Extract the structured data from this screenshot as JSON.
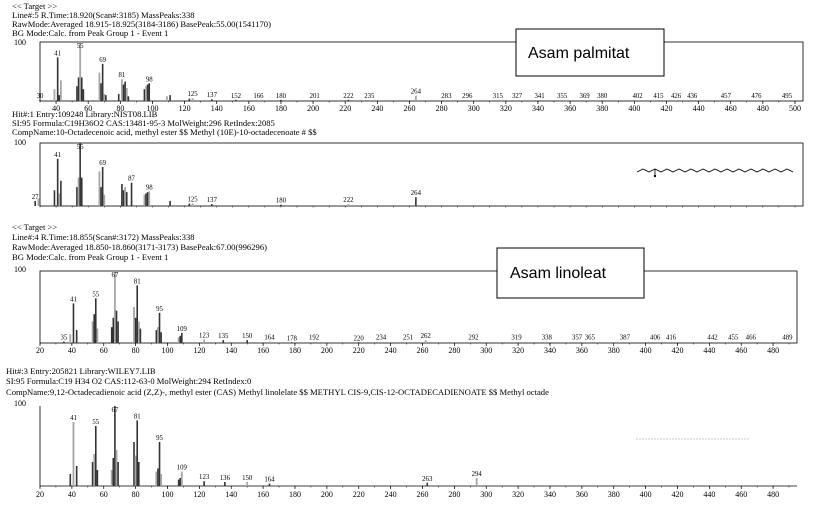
{
  "colors": {
    "bar_dark": "#333333",
    "bar_light": "#a6a6a6",
    "axis": "#000000"
  },
  "panels": [
    {
      "header": [
        "<< Target >>",
        "Line#:5   R.Time:18.920(Scan#:3185)  MassPeaks:338",
        "RawMode:Averaged 18.915-18.925(3184-3186) BasePeak:55.00(1541170)",
        "BG Mode:Calc. from Peak  Group 1 - Event 1"
      ],
      "ymax_label": "100",
      "annotation_box": "Asam palmitat"
    },
    {
      "header": [
        "Hit#:1  Entry:109248  Library:NIST08.LIB",
        "SI:95  Formula:C19H36O2  CAS:13481-95-3  MolWeight:296  RetIndex:2085",
        "CompName:10-Octadecenoic acid, methyl ester $$ Methyl (10E)-10-octadecenoate # $$"
      ],
      "ymax_label": "100",
      "structure_icon": "molecule-structure-icon"
    },
    {
      "header": [
        "<< Target >>",
        "Line#:4   R.Time:18.855(Scan#:3172)  MassPeaks:338",
        "RawMode:Averaged 18.850-18.860(3171-3173) BasePeak:67.00(996296)",
        "BG Mode:Calc. from Peak  Group 1 - Event 1"
      ],
      "ymax_label": "100",
      "annotation_box": "Asam linoleat"
    },
    {
      "header": [
        "Hit#:3  Entry:205821  Library:WILEY7.LIB",
        "SI:95  Formula:C19 H34 O2  CAS:112-63-0  MolWeight:294  RetIndex:0",
        "CompName:9,12-Octadecadienoic acid (Z,Z)-, methyl ester (CAS) Methyl linolelate $$ METHYL CIS-9,CIS-12-OCTADECADIENOATE $$ Methyl octade"
      ],
      "ymax_label": "100",
      "structure_icon": "molecule-structure-icon"
    }
  ],
  "chart_data": [
    {
      "type": "bar",
      "xlim": [
        30,
        505
      ],
      "ylim": [
        0,
        100
      ],
      "x_ticks": [
        40,
        60,
        80,
        100,
        120,
        140,
        160,
        180,
        200,
        220,
        240,
        260,
        280,
        300,
        320,
        340,
        360,
        380,
        400,
        420,
        440,
        460,
        480,
        500
      ],
      "peak_labels": [
        {
          "x": 30,
          "text": "30"
        },
        {
          "x": 41,
          "text": "41"
        },
        {
          "x": 55,
          "text": "55"
        },
        {
          "x": 69,
          "text": "69"
        },
        {
          "x": 81,
          "text": "81"
        },
        {
          "x": 98,
          "text": "98"
        },
        {
          "x": 125,
          "text": "125"
        },
        {
          "x": 137,
          "text": "137"
        },
        {
          "x": 152,
          "text": "152"
        },
        {
          "x": 166,
          "text": "166"
        },
        {
          "x": 180,
          "text": "180"
        },
        {
          "x": 201,
          "text": "201"
        },
        {
          "x": 222,
          "text": "222"
        },
        {
          "x": 235,
          "text": "235"
        },
        {
          "x": 264,
          "text": "264"
        },
        {
          "x": 283,
          "text": "283"
        },
        {
          "x": 296,
          "text": "296"
        },
        {
          "x": 315,
          "text": "315"
        },
        {
          "x": 327,
          "text": "327"
        },
        {
          "x": 341,
          "text": "341"
        },
        {
          "x": 355,
          "text": "355"
        },
        {
          "x": 369,
          "text": "369"
        },
        {
          "x": 380,
          "text": "380"
        },
        {
          "x": 402,
          "text": "402"
        },
        {
          "x": 415,
          "text": "415"
        },
        {
          "x": 426,
          "text": "426"
        },
        {
          "x": 436,
          "text": "436"
        },
        {
          "x": 457,
          "text": "457"
        },
        {
          "x": 476,
          "text": "476"
        },
        {
          "x": 495,
          "text": "495"
        }
      ],
      "peaks": [
        {
          "x": 30,
          "y": 2
        },
        {
          "x": 39,
          "y": 20
        },
        {
          "x": 41,
          "y": 74
        },
        {
          "x": 42,
          "y": 10
        },
        {
          "x": 43,
          "y": 35
        },
        {
          "x": 53,
          "y": 25
        },
        {
          "x": 54,
          "y": 40
        },
        {
          "x": 55,
          "y": 100
        },
        {
          "x": 56,
          "y": 40
        },
        {
          "x": 57,
          "y": 20
        },
        {
          "x": 67,
          "y": 48
        },
        {
          "x": 68,
          "y": 30
        },
        {
          "x": 69,
          "y": 63
        },
        {
          "x": 70,
          "y": 12
        },
        {
          "x": 71,
          "y": 10
        },
        {
          "x": 79,
          "y": 12
        },
        {
          "x": 81,
          "y": 37
        },
        {
          "x": 82,
          "y": 28
        },
        {
          "x": 83,
          "y": 33
        },
        {
          "x": 84,
          "y": 22
        },
        {
          "x": 85,
          "y": 8
        },
        {
          "x": 95,
          "y": 20
        },
        {
          "x": 96,
          "y": 25
        },
        {
          "x": 97,
          "y": 28
        },
        {
          "x": 98,
          "y": 30
        },
        {
          "x": 109,
          "y": 8
        },
        {
          "x": 111,
          "y": 10
        },
        {
          "x": 123,
          "y": 4
        },
        {
          "x": 125,
          "y": 5
        },
        {
          "x": 137,
          "y": 3
        },
        {
          "x": 152,
          "y": 2
        },
        {
          "x": 166,
          "y": 2
        },
        {
          "x": 180,
          "y": 2
        },
        {
          "x": 222,
          "y": 2
        },
        {
          "x": 264,
          "y": 9
        }
      ]
    },
    {
      "type": "bar",
      "xlim": [
        30,
        505
      ],
      "ylim": [
        0,
        100
      ],
      "x_ticks": [],
      "peak_labels": [
        {
          "x": 27,
          "text": "27"
        },
        {
          "x": 41,
          "text": "41"
        },
        {
          "x": 55,
          "text": "55"
        },
        {
          "x": 69,
          "text": "69"
        },
        {
          "x": 87,
          "text": "87"
        },
        {
          "x": 98,
          "text": "98"
        },
        {
          "x": 125,
          "text": "125"
        },
        {
          "x": 137,
          "text": "137"
        },
        {
          "x": 180,
          "text": "180"
        },
        {
          "x": 222,
          "text": "222"
        },
        {
          "x": 264,
          "text": "264"
        }
      ],
      "peaks": [
        {
          "x": 27,
          "y": 8
        },
        {
          "x": 29,
          "y": 12
        },
        {
          "x": 39,
          "y": 25
        },
        {
          "x": 41,
          "y": 75
        },
        {
          "x": 42,
          "y": 20
        },
        {
          "x": 43,
          "y": 40
        },
        {
          "x": 53,
          "y": 30
        },
        {
          "x": 54,
          "y": 45
        },
        {
          "x": 55,
          "y": 100
        },
        {
          "x": 56,
          "y": 45
        },
        {
          "x": 67,
          "y": 55
        },
        {
          "x": 68,
          "y": 30
        },
        {
          "x": 69,
          "y": 62
        },
        {
          "x": 70,
          "y": 18
        },
        {
          "x": 81,
          "y": 35
        },
        {
          "x": 82,
          "y": 25
        },
        {
          "x": 83,
          "y": 30
        },
        {
          "x": 84,
          "y": 22
        },
        {
          "x": 87,
          "y": 37
        },
        {
          "x": 95,
          "y": 18
        },
        {
          "x": 96,
          "y": 20
        },
        {
          "x": 97,
          "y": 22
        },
        {
          "x": 98,
          "y": 23
        },
        {
          "x": 111,
          "y": 8
        },
        {
          "x": 123,
          "y": 4
        },
        {
          "x": 125,
          "y": 4
        },
        {
          "x": 137,
          "y": 3
        },
        {
          "x": 180,
          "y": 2
        },
        {
          "x": 222,
          "y": 3
        },
        {
          "x": 264,
          "y": 14
        }
      ]
    },
    {
      "type": "bar",
      "xlim": [
        20,
        495
      ],
      "ylim": [
        0,
        100
      ],
      "x_ticks": [
        20,
        40,
        60,
        80,
        100,
        120,
        140,
        160,
        180,
        200,
        220,
        240,
        260,
        280,
        300,
        320,
        340,
        360,
        380,
        400,
        420,
        440,
        460,
        480
      ],
      "peak_labels": [
        {
          "x": 35,
          "text": "35"
        },
        {
          "x": 41,
          "text": "41"
        },
        {
          "x": 55,
          "text": "55"
        },
        {
          "x": 67,
          "text": "67"
        },
        {
          "x": 81,
          "text": "81"
        },
        {
          "x": 95,
          "text": "95"
        },
        {
          "x": 109,
          "text": "109"
        },
        {
          "x": 123,
          "text": "123"
        },
        {
          "x": 135,
          "text": "135"
        },
        {
          "x": 150,
          "text": "150"
        },
        {
          "x": 164,
          "text": "164"
        },
        {
          "x": 178,
          "text": "178"
        },
        {
          "x": 192,
          "text": "192"
        },
        {
          "x": 220,
          "text": "220"
        },
        {
          "x": 234,
          "text": "234"
        },
        {
          "x": 251,
          "text": "251"
        },
        {
          "x": 262,
          "text": "262"
        },
        {
          "x": 292,
          "text": "292"
        },
        {
          "x": 319,
          "text": "319"
        },
        {
          "x": 338,
          "text": "338"
        },
        {
          "x": 357,
          "text": "357"
        },
        {
          "x": 365,
          "text": "365"
        },
        {
          "x": 387,
          "text": "387"
        },
        {
          "x": 406,
          "text": "406"
        },
        {
          "x": 416,
          "text": "416"
        },
        {
          "x": 442,
          "text": "442"
        },
        {
          "x": 455,
          "text": "455"
        },
        {
          "x": 466,
          "text": "466"
        },
        {
          "x": 489,
          "text": "489"
        }
      ],
      "peaks": [
        {
          "x": 35,
          "y": 2
        },
        {
          "x": 39,
          "y": 12
        },
        {
          "x": 41,
          "y": 55
        },
        {
          "x": 43,
          "y": 18
        },
        {
          "x": 53,
          "y": 30
        },
        {
          "x": 54,
          "y": 40
        },
        {
          "x": 55,
          "y": 62
        },
        {
          "x": 56,
          "y": 20
        },
        {
          "x": 65,
          "y": 22
        },
        {
          "x": 66,
          "y": 35
        },
        {
          "x": 67,
          "y": 100
        },
        {
          "x": 68,
          "y": 45
        },
        {
          "x": 69,
          "y": 30
        },
        {
          "x": 79,
          "y": 50
        },
        {
          "x": 80,
          "y": 35
        },
        {
          "x": 81,
          "y": 80
        },
        {
          "x": 82,
          "y": 30
        },
        {
          "x": 83,
          "y": 20
        },
        {
          "x": 93,
          "y": 18
        },
        {
          "x": 94,
          "y": 22
        },
        {
          "x": 95,
          "y": 42
        },
        {
          "x": 96,
          "y": 15
        },
        {
          "x": 107,
          "y": 8
        },
        {
          "x": 108,
          "y": 10
        },
        {
          "x": 109,
          "y": 14
        },
        {
          "x": 123,
          "y": 5
        },
        {
          "x": 135,
          "y": 4
        },
        {
          "x": 150,
          "y": 4
        },
        {
          "x": 164,
          "y": 2
        },
        {
          "x": 178,
          "y": 1
        },
        {
          "x": 220,
          "y": 1
        },
        {
          "x": 262,
          "y": 4
        }
      ]
    },
    {
      "type": "bar",
      "xlim": [
        20,
        495
      ],
      "ylim": [
        0,
        100
      ],
      "x_ticks": [
        20,
        40,
        60,
        80,
        100,
        120,
        140,
        160,
        180,
        200,
        220,
        240,
        260,
        280,
        300,
        320,
        340,
        360,
        380,
        400,
        420,
        440,
        460,
        480
      ],
      "peak_labels": [
        {
          "x": 41,
          "text": "41"
        },
        {
          "x": 55,
          "text": "55"
        },
        {
          "x": 67,
          "text": "67"
        },
        {
          "x": 81,
          "text": "81"
        },
        {
          "x": 95,
          "text": "95"
        },
        {
          "x": 109,
          "text": "109"
        },
        {
          "x": 123,
          "text": "123"
        },
        {
          "x": 136,
          "text": "136"
        },
        {
          "x": 150,
          "text": "150"
        },
        {
          "x": 164,
          "text": "164"
        },
        {
          "x": 263,
          "text": "263"
        },
        {
          "x": 294,
          "text": "294"
        }
      ],
      "peaks": [
        {
          "x": 39,
          "y": 15
        },
        {
          "x": 41,
          "y": 80
        },
        {
          "x": 43,
          "y": 25
        },
        {
          "x": 53,
          "y": 30
        },
        {
          "x": 54,
          "y": 40
        },
        {
          "x": 55,
          "y": 75
        },
        {
          "x": 56,
          "y": 20
        },
        {
          "x": 65,
          "y": 20
        },
        {
          "x": 66,
          "y": 35
        },
        {
          "x": 67,
          "y": 100
        },
        {
          "x": 68,
          "y": 45
        },
        {
          "x": 69,
          "y": 30
        },
        {
          "x": 79,
          "y": 55
        },
        {
          "x": 80,
          "y": 38
        },
        {
          "x": 81,
          "y": 82
        },
        {
          "x": 82,
          "y": 30
        },
        {
          "x": 93,
          "y": 18
        },
        {
          "x": 94,
          "y": 22
        },
        {
          "x": 95,
          "y": 55
        },
        {
          "x": 96,
          "y": 15
        },
        {
          "x": 107,
          "y": 8
        },
        {
          "x": 108,
          "y": 10
        },
        {
          "x": 109,
          "y": 18
        },
        {
          "x": 123,
          "y": 6
        },
        {
          "x": 136,
          "y": 5
        },
        {
          "x": 150,
          "y": 5
        },
        {
          "x": 164,
          "y": 3
        },
        {
          "x": 263,
          "y": 4
        },
        {
          "x": 294,
          "y": 10
        }
      ]
    }
  ]
}
